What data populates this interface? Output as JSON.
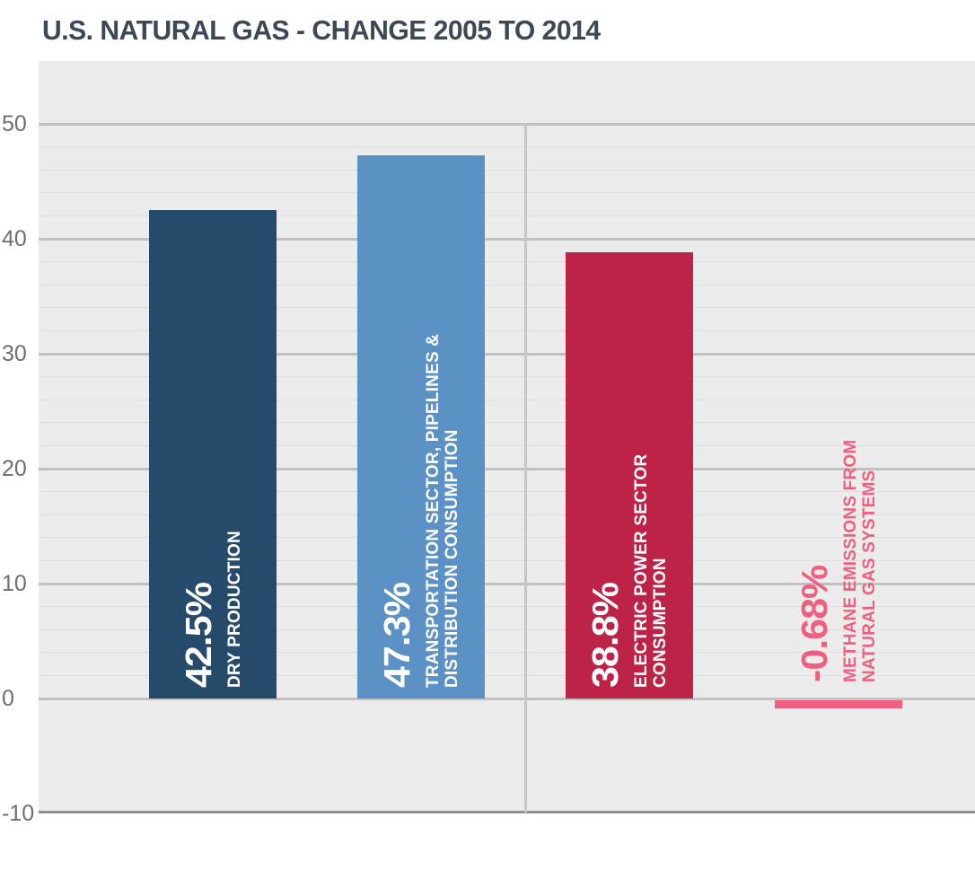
{
  "chart_data": {
    "type": "bar",
    "title": "U.S. NATURAL GAS - CHANGE 2005 TO 2014",
    "categories": [
      "DRY PRODUCTION",
      "TRANSPORTATION SECTOR, PIPELINES & DISTRIBUTION CONSUMPTION",
      "ELECTRIC POWER SECTOR CONSUMPTION",
      "METHANE EMISSIONS FROM NATURAL GAS SYSTEMS"
    ],
    "values": [
      42.5,
      47.3,
      38.8,
      -0.68
    ],
    "value_labels": [
      "42.5%",
      "47.3%",
      "38.8%",
      "-0.68%"
    ],
    "label_lines": [
      [
        "DRY PRODUCTION"
      ],
      [
        "TRANSPORTATION SECTOR, PIPELINES &",
        "DISTRIBUTION CONSUMPTION"
      ],
      [
        "ELECTRIC POWER SECTOR",
        "CONSUMPTION"
      ],
      [
        "METHANE EMISSIONS FROM",
        "NATURAL GAS SYSTEMS"
      ]
    ],
    "bar_colors": [
      "#264a69",
      "#5b91c5",
      "#bc2347",
      "#f05f7f"
    ],
    "bar_label_inside": [
      true,
      true,
      true,
      false
    ],
    "xlabel": "",
    "ylabel": "",
    "ylim": [
      -10,
      55.5
    ],
    "y_axis": {
      "ticks": [
        50,
        40,
        30,
        20,
        10,
        0,
        -10
      ],
      "tick_labels": [
        "50",
        "40",
        "30",
        "20",
        "10",
        "0",
        "-10"
      ],
      "major_gridline_step": 10,
      "minor_gridline_step": 2,
      "minor_gridline_range": [
        0,
        50
      ]
    },
    "grid": true,
    "legend": false
  },
  "colors": {
    "title_text": "#3c4856",
    "plot_background": "#ececec",
    "gridline_minor": "#dedede",
    "gridline_major": "#c1c1c1",
    "axis_bottom": "#8e8e8e",
    "category_divider": "#c7c7c7",
    "tick_text": "#6e6e6e",
    "bar_label_inside_text": "#ffffff"
  }
}
